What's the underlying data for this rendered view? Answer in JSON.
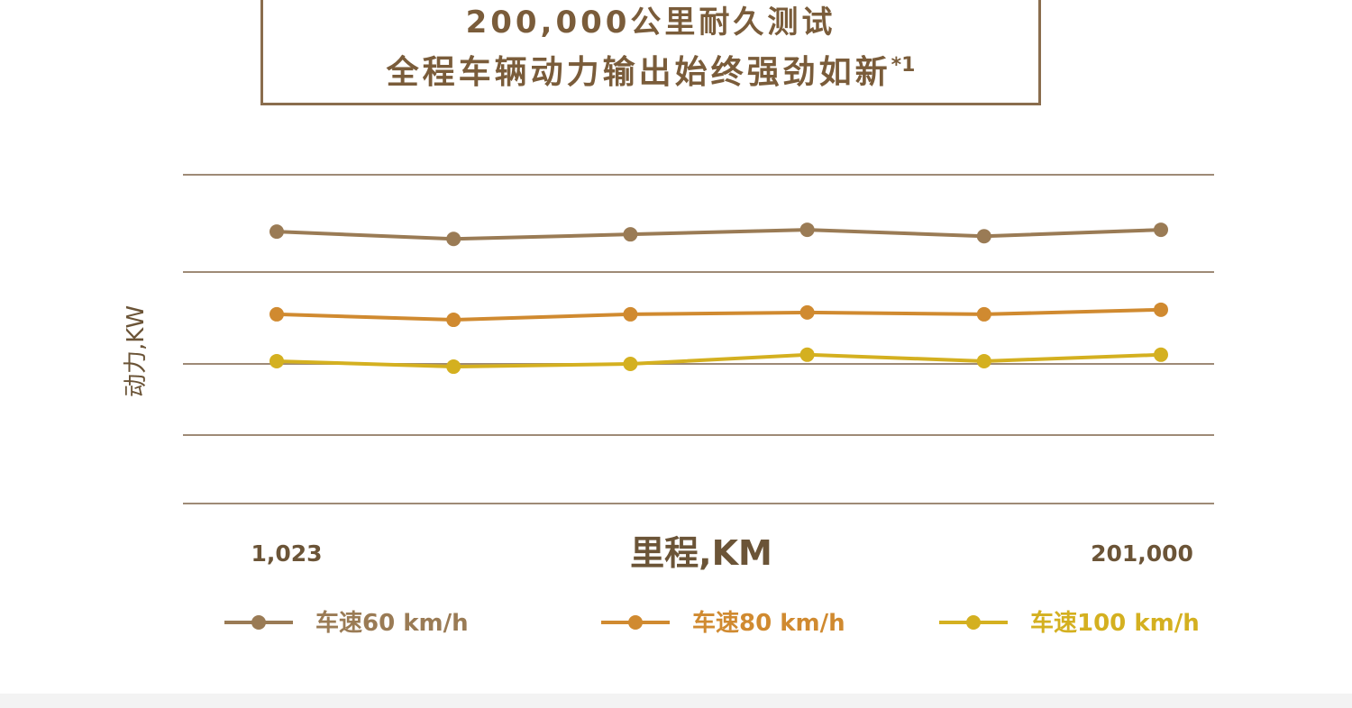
{
  "title": {
    "line1": "200,000公里耐久测试",
    "line2": "全程车辆动力输出始终强劲如新",
    "footnote": "*1"
  },
  "colors": {
    "frame": "#8a6d4d",
    "grid": "#9e8a76",
    "text": "#6b5437"
  },
  "chart_data": {
    "type": "line",
    "xlabel": "里程,KM",
    "ylabel": "动力,KW",
    "x_tick_labels": [
      "1,023",
      "201,000"
    ],
    "x_points": 6,
    "grid": true,
    "gridline_count": 5,
    "legend_position": "bottom",
    "series": [
      {
        "name": "车速60 km/h",
        "color": "#9a7b55",
        "values": [
          3.44,
          3.36,
          3.41,
          3.46,
          3.39,
          3.46
        ]
      },
      {
        "name": "车速80 km/h",
        "color": "#d08a30",
        "values": [
          2.54,
          2.48,
          2.54,
          2.56,
          2.54,
          2.59
        ]
      },
      {
        "name": "车速100 km/h",
        "color": "#d4b020",
        "values": [
          2.03,
          1.97,
          2.0,
          2.1,
          2.03,
          2.1
        ]
      }
    ]
  }
}
